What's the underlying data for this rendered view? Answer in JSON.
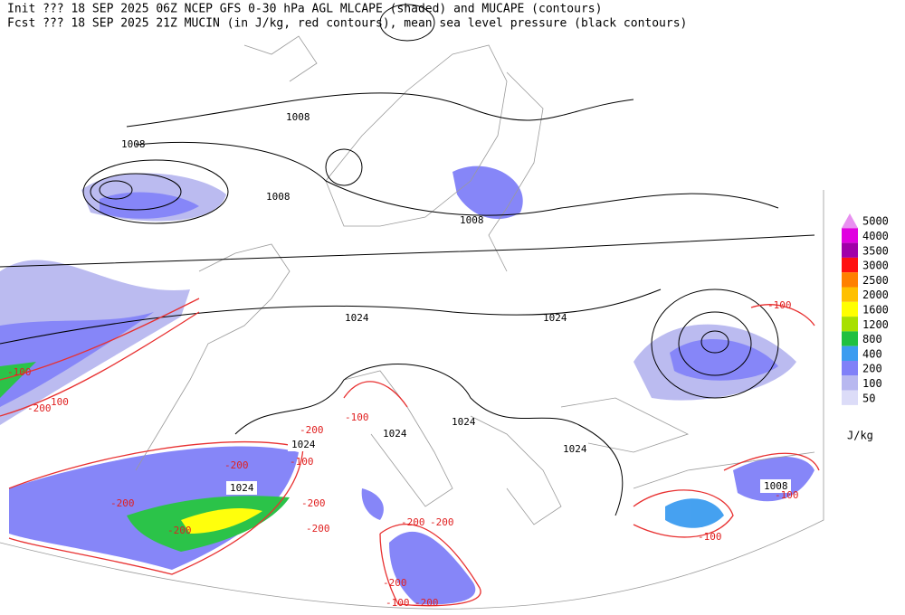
{
  "header": {
    "lines": [
      "Init  ??? 18 SEP 2025 06Z  NCEP GFS 0-30 hPa AGL MLCAPE (shaded) and MUCAPE (contours)",
      "Fcst ??? 18 SEP 2025 21Z  MUCIN (in J/kg, red contours), mean sea level pressure (black contours)"
    ]
  },
  "colorbar": {
    "unit": "J/kg",
    "levels": [
      {
        "label": "5000",
        "color": "#e890f0"
      },
      {
        "label": "4000",
        "color": "#e000e0"
      },
      {
        "label": "3500",
        "color": "#a000a8"
      },
      {
        "label": "3000",
        "color": "#ff1010"
      },
      {
        "label": "2500",
        "color": "#ff8000"
      },
      {
        "label": "2000",
        "color": "#ffc000"
      },
      {
        "label": "1600",
        "color": "#ffff00"
      },
      {
        "label": "1200",
        "color": "#a8e000"
      },
      {
        "label": "800",
        "color": "#20c040"
      },
      {
        "label": "400",
        "color": "#3c9cf0"
      },
      {
        "label": "200",
        "color": "#8080f8"
      },
      {
        "label": "100",
        "color": "#b8b8f0"
      },
      {
        "label": "50",
        "color": "#dcdcf8"
      }
    ]
  },
  "pressure_labels": [
    "1008",
    "1008",
    "1008",
    "1008",
    "1024",
    "1024",
    "1024",
    "1024",
    "1024",
    "1024",
    "1024",
    "1008"
  ],
  "mucin_labels": [
    "-100",
    "-200",
    "100",
    "-100",
    "-200",
    "-100",
    "-200",
    "-200",
    "-200",
    "-200",
    "-200",
    "-200",
    "-100",
    "-100",
    "-200",
    "-100",
    "-200",
    "-100",
    "-200"
  ]
}
